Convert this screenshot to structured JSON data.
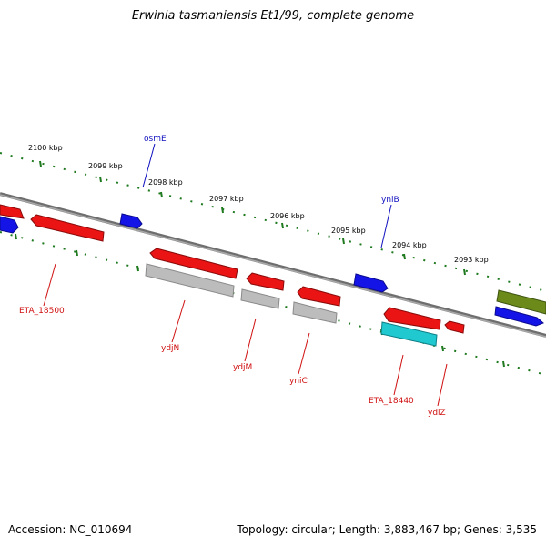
{
  "title": "Erwinia tasmaniensis Et1/99, complete genome",
  "footer": {
    "accession": "Accession: NC_010694",
    "summary": "Topology: circular; Length: 3,883,467 bp; Genes: 3,535"
  },
  "ticks": [
    "2100 kbp",
    "2099 kbp",
    "2098 kbp",
    "2097 kbp",
    "2096 kbp",
    "2095 kbp",
    "2094 kbp",
    "2093 kbp"
  ],
  "genes": [
    "osmE",
    "yniB",
    "ETA_18500",
    "ydjN",
    "ydjM",
    "yniC",
    "ETA_18440",
    "ydiZ"
  ],
  "colors": {
    "backbone": "#7a7a7a",
    "tick": "#1f7a1f",
    "forward_gene": "#1010e0",
    "reverse_gene": "#e81010",
    "pseudo": "#b8b8b8",
    "rna": "#20c8d0",
    "other": "#6b8a1a",
    "label_forward": "#1010c0",
    "label_reverse": "#d01010"
  }
}
